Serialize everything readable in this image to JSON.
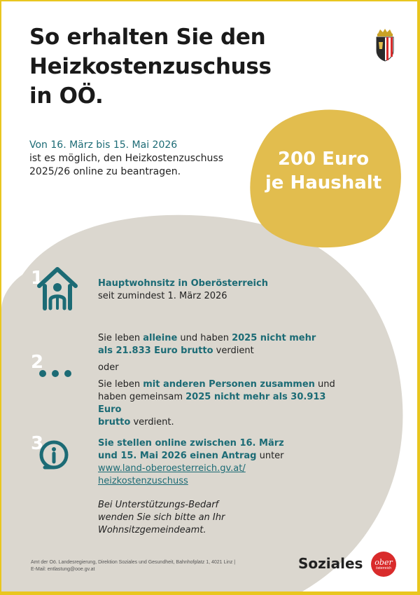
{
  "title_lines": [
    "So erhalten Sie den",
    "Heizkostenzuschuss",
    "in OÖ."
  ],
  "intro": {
    "period": "Von 16. März bis 15. Mai 2026",
    "line2": "ist es möglich, den Heizkostenzuschuss",
    "line3": "2025/26 online zu beantragen."
  },
  "badge": {
    "line1": "200 Euro",
    "line2": "je Haushalt"
  },
  "steps": [
    {
      "number": "1",
      "icon": "house-person-icon",
      "title": "Hauptwohnsitz in Oberösterreich",
      "text": "seit zumindest 1. März 2026"
    },
    {
      "number": "2",
      "icon": "dots-icon",
      "part1_a": "Sie leben ",
      "part1_b": "alleine",
      "part1_c": " und haben ",
      "part1_d": "2025 nicht mehr",
      "part1_e": "als 21.833 Euro brutto",
      "part1_f": " verdient",
      "oder": "oder",
      "part2_a": "Sie leben ",
      "part2_b": "mit anderen Personen zusammen",
      "part2_c": " und",
      "part2_d": "haben gemeinsam ",
      "part2_e": "2025 nicht mehr als 30.913 Euro",
      "part2_f": "brutto",
      "part2_g": " verdient."
    },
    {
      "number": "3",
      "icon": "info-icon",
      "line1": "Sie stellen online zwischen 16. März",
      "line2_a": "und 15. Mai 2026 einen Antrag",
      "line2_b": " unter",
      "link1": "www.land-oberoesterreich.gv.at/",
      "link2": "heizkostenzuschuss",
      "note1": "Bei Unterstützungs-Bedarf",
      "note2": "wenden Sie sich bitte an Ihr",
      "note3": "Wohnsitzgemeindeamt."
    }
  ],
  "footer": {
    "line1": "Amt der Oö. Landesregierung, Direktion Soziales und Gesundheit, Bahnhofplatz 1, 4021 Linz |",
    "line2": "E-Mail: entlastung@ooe.gv.at"
  },
  "brand": "Soziales",
  "logo": {
    "line1": "ober",
    "line2": "österreich"
  },
  "colors": {
    "teal": "#1c6b75",
    "gold": "#e2bd4e",
    "beige": "#dbd7cf",
    "frame": "#e9c61f",
    "logo_red": "#d92b2b"
  }
}
